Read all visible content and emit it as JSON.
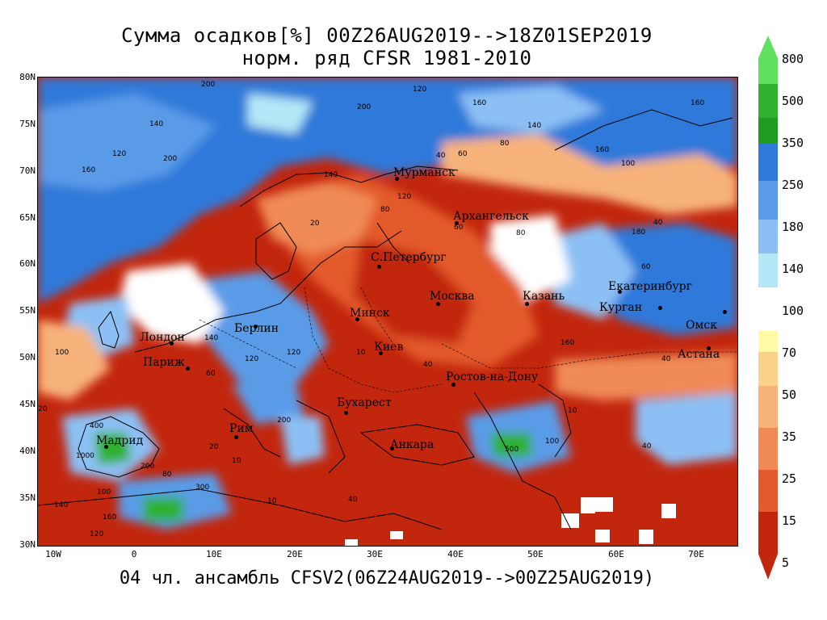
{
  "title_line1": "Сумма осадков[%] 00Z26AUG2019-->18Z01SEP2019",
  "title_line2": "норм. ряд CFSR 1981-2010",
  "footer": "04 чл. ансамбль CFSV2(06Z24AUG2019-->00Z25AUG2019)",
  "lat_labels": [
    "80N",
    "75N",
    "70N",
    "65N",
    "60N",
    "55N",
    "50N",
    "45N",
    "40N",
    "35N",
    "30N"
  ],
  "lon_labels": [
    "10W",
    "0",
    "10E",
    "20E",
    "30E",
    "40E",
    "50E",
    "60E",
    "70E"
  ],
  "colorbar": {
    "labels": [
      "800",
      "500",
      "350",
      "250",
      "180",
      "140",
      "100",
      "70",
      "50",
      "35",
      "25",
      "15",
      "5"
    ],
    "colors": {
      "c800": "#5fe05f",
      "c500": "#2fb12f",
      "c350": "#1f9b1f",
      "c250": "#2f79d9",
      "c180": "#5a9be8",
      "c140": "#8cc0f5",
      "c120": "#b4e8f7",
      "c100": "#ffffff",
      "c70": "#fffaa6",
      "c50": "#fbd28c",
      "c35": "#f7b279",
      "c25": "#f08a56",
      "c15": "#e35a2c",
      "c5": "#c2260d"
    }
  },
  "cities": [
    {
      "id": "murmansk",
      "name": "Мурманск"
    },
    {
      "id": "arkhangelsk",
      "name": "Архангельск"
    },
    {
      "id": "spb",
      "name": "С.Петербург"
    },
    {
      "id": "moscow",
      "name": "Москва"
    },
    {
      "id": "kazan",
      "name": "Казань"
    },
    {
      "id": "ekb",
      "name": "Екатеринбург"
    },
    {
      "id": "kurgan",
      "name": "Курган"
    },
    {
      "id": "omsk",
      "name": "Омск"
    },
    {
      "id": "astana",
      "name": "Астана"
    },
    {
      "id": "minsk",
      "name": "Минск"
    },
    {
      "id": "kiev",
      "name": "Киев"
    },
    {
      "id": "rostov",
      "name": "Ростов-на-Дону"
    },
    {
      "id": "berlin",
      "name": "Берлин"
    },
    {
      "id": "london",
      "name": "Лондон"
    },
    {
      "id": "paris",
      "name": "Париж"
    },
    {
      "id": "bucharest",
      "name": "Бухарест"
    },
    {
      "id": "rome",
      "name": "Рим"
    },
    {
      "id": "madrid",
      "name": "Мадрид"
    },
    {
      "id": "ankara",
      "name": "Анкара"
    }
  ],
  "contour_values": [
    {
      "v": "200"
    },
    {
      "v": "120"
    },
    {
      "v": "140"
    },
    {
      "v": "160"
    },
    {
      "v": "200"
    },
    {
      "v": "140"
    },
    {
      "v": "160"
    },
    {
      "v": "120"
    },
    {
      "v": "160"
    },
    {
      "v": "140"
    },
    {
      "v": "200"
    },
    {
      "v": "160"
    },
    {
      "v": "100"
    },
    {
      "v": "60"
    },
    {
      "v": "80"
    },
    {
      "v": "120"
    },
    {
      "v": "40"
    },
    {
      "v": "60"
    },
    {
      "v": "80"
    },
    {
      "v": "60"
    },
    {
      "v": "40"
    },
    {
      "v": "20"
    },
    {
      "v": "80"
    },
    {
      "v": "120"
    },
    {
      "v": "10"
    },
    {
      "v": "40"
    },
    {
      "v": "160"
    },
    {
      "v": "100"
    },
    {
      "v": "20"
    },
    {
      "v": "140"
    },
    {
      "v": "120"
    },
    {
      "v": "60"
    },
    {
      "v": "10"
    },
    {
      "v": "40"
    },
    {
      "v": "400"
    },
    {
      "v": "1000"
    },
    {
      "v": "200"
    },
    {
      "v": "10"
    },
    {
      "v": "20"
    },
    {
      "v": "300"
    },
    {
      "v": "100"
    },
    {
      "v": "500"
    },
    {
      "v": "80"
    },
    {
      "v": "200"
    },
    {
      "v": "100"
    },
    {
      "v": "10"
    },
    {
      "v": "40"
    },
    {
      "v": "140"
    },
    {
      "v": "160"
    },
    {
      "v": "180"
    },
    {
      "v": "120"
    },
    {
      "v": "40"
    }
  ]
}
